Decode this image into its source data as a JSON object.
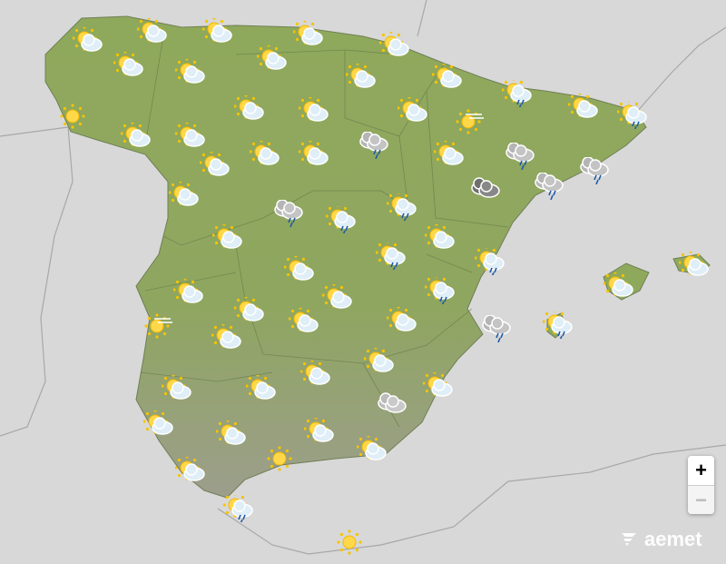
{
  "map": {
    "land_color": "#8fa95c",
    "south_land_color": "#9c9e8c",
    "sea_color": "#d8d8d8",
    "neighbor_color": "#dcdcdc",
    "forecast_icons": [
      "sun-cloud",
      "sun-cloud",
      "sun-cloud",
      "sun-cloud",
      "sun-cloud",
      "sun-cloud",
      "sun-cloud",
      "sun-cloud",
      "sun-cloud",
      "sun-cloud",
      "sun-cloud-rain",
      "sun-cloud",
      "sun-cloud-rain",
      "sun",
      "sun-cloud",
      "sun-cloud",
      "sun-cloud",
      "sun-cloud",
      "sun-cloud",
      "sun-haze",
      "clouds-rain",
      "sun-cloud",
      "sun-cloud",
      "sun-cloud",
      "sun-cloud",
      "clouds-rain",
      "clouds-rain",
      "sun-cloud",
      "clouds-storm",
      "clouds-rain",
      "clouds-rain",
      "sun-cloud-rain",
      "sun-cloud-rain",
      "sun-cloud",
      "sun-cloud",
      "sun-cloud-rain",
      "sun-cloud-rain",
      "sun-cloud",
      "sun-cloud",
      "sun-cloud",
      "sun-cloud",
      "sun-cloud-rain",
      "sun-cloud",
      "sun-cloud",
      "sun-haze",
      "sun-cloud",
      "sun-cloud",
      "sun-cloud",
      "clouds-rain",
      "sun-cloud-rain",
      "sun-cloud",
      "sun-cloud",
      "sun-cloud",
      "sun-cloud",
      "sun-cloud",
      "clouds",
      "sun-cloud",
      "sun-cloud",
      "sun-cloud",
      "sun",
      "sun-cloud",
      "sun-cloud",
      "sun-cloud-rain",
      "sun"
    ]
  },
  "controls": {
    "zoom_in": "+",
    "zoom_out": "−"
  },
  "logo": {
    "text": "aemet"
  }
}
